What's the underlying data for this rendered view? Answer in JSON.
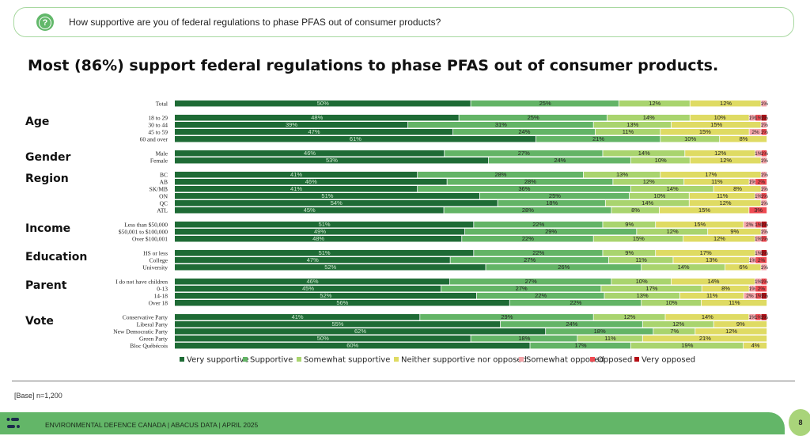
{
  "question": {
    "icon": "question-bubble-icon",
    "text": "How supportive are you of federal regulations to phase PFAS out of consumer products?"
  },
  "title": "Most (86%) support federal regulations to phase PFAS out of consumer products.",
  "base_note": "[Base] n=1,200",
  "footer": {
    "text": "ENVIRONMENTAL DEFENCE CANADA |  ABACUS DATA  |  APRIL 2025",
    "page_number": "8"
  },
  "chart_data": {
    "type": "bar",
    "orientation": "horizontal-stacked-100",
    "legend_position": "bottom",
    "series_names": [
      "Very supportive",
      "Supportive",
      "Somewhat supportive",
      "Neither supportive nor opposed",
      "Somewhat opposed",
      "Opposed",
      "Very opposed"
    ],
    "colors": [
      "#1e6b35",
      "#63b466",
      "#a9d46e",
      "#dfdb63",
      "#f4a3a8",
      "#ef4b52",
      "#b50f16"
    ],
    "groups": [
      {
        "label": "",
        "rows": [
          {
            "label": "Total",
            "values": [
              50,
              25,
              12,
              12,
              1,
              0,
              0
            ]
          }
        ]
      },
      {
        "label": "Age",
        "rows": [
          {
            "label": "18 to 29",
            "values": [
              48,
              25,
              14,
              10,
              1,
              1,
              1
            ]
          },
          {
            "label": "30 to 44",
            "values": [
              39,
              31,
              13,
              15,
              1,
              0,
              0
            ]
          },
          {
            "label": "45 to 59",
            "values": [
              47,
              24,
              11,
              15,
              2,
              1,
              0
            ]
          },
          {
            "label": "60 and over",
            "values": [
              61,
              21,
              10,
              8,
              0,
              0,
              0
            ]
          }
        ]
      },
      {
        "label": "Gender",
        "rows": [
          {
            "label": "Male",
            "values": [
              46,
              27,
              14,
              12,
              1,
              1,
              0
            ]
          },
          {
            "label": "Female",
            "values": [
              53,
              24,
              10,
              12,
              1,
              0,
              0
            ]
          }
        ]
      },
      {
        "label": "Region",
        "rows": [
          {
            "label": "BC",
            "values": [
              41,
              28,
              13,
              17,
              1,
              0,
              0
            ]
          },
          {
            "label": "AB",
            "values": [
              46,
              28,
              12,
              11,
              1,
              2,
              0
            ]
          },
          {
            "label": "SK/MB",
            "values": [
              41,
              36,
              14,
              8,
              1,
              0,
              0
            ]
          },
          {
            "label": "ON",
            "values": [
              51,
              25,
              10,
              11,
              1,
              1,
              0
            ]
          },
          {
            "label": "QC",
            "values": [
              54,
              18,
              14,
              12,
              1,
              0,
              0
            ]
          },
          {
            "label": "ATL",
            "values": [
              45,
              28,
              8,
              15,
              0,
              3,
              0
            ]
          }
        ]
      },
      {
        "label": "Income",
        "rows": [
          {
            "label": "Less than $50,000",
            "values": [
              51,
              22,
              9,
              15,
              2,
              1,
              1
            ]
          },
          {
            "label": "$50,001 to $100,000",
            "values": [
              49,
              29,
              12,
              9,
              1,
              0,
              0
            ]
          },
          {
            "label": "Over $100,001",
            "values": [
              48,
              22,
              15,
              12,
              1,
              1,
              0
            ]
          }
        ]
      },
      {
        "label": "Education",
        "rows": [
          {
            "label": "HS or less",
            "values": [
              51,
              22,
              9,
              17,
              1,
              0,
              1
            ]
          },
          {
            "label": "College",
            "values": [
              47,
              27,
              11,
              13,
              1,
              2,
              0
            ]
          },
          {
            "label": "University",
            "values": [
              52,
              26,
              14,
              6,
              1,
              0,
              0
            ]
          }
        ]
      },
      {
        "label": "Parent",
        "rows": [
          {
            "label": "I do not have children",
            "values": [
              46,
              27,
              10,
              14,
              1,
              1,
              0
            ]
          },
          {
            "label": "0-13",
            "values": [
              45,
              27,
              17,
              8,
              1,
              2,
              0
            ]
          },
          {
            "label": "14-18",
            "values": [
              52,
              22,
              13,
              11,
              2,
              1,
              1
            ]
          },
          {
            "label": "Over 18",
            "values": [
              56,
              22,
              10,
              11,
              0,
              0,
              0
            ]
          }
        ]
      },
      {
        "label": "Vote",
        "rows": [
          {
            "label": "Conservative Party",
            "values": [
              41,
              29,
              12,
              14,
              1,
              1,
              1
            ]
          },
          {
            "label": "Liberal Party",
            "values": [
              55,
              24,
              12,
              9,
              0,
              0,
              0
            ]
          },
          {
            "label": "New Democratic Party",
            "values": [
              62,
              18,
              7,
              12,
              0,
              0,
              0
            ]
          },
          {
            "label": "Green Party",
            "values": [
              50,
              18,
              11,
              21,
              0,
              0,
              0
            ]
          },
          {
            "label": "Bloc Québécois",
            "values": [
              60,
              17,
              19,
              4,
              0,
              0,
              0
            ]
          }
        ]
      }
    ]
  }
}
